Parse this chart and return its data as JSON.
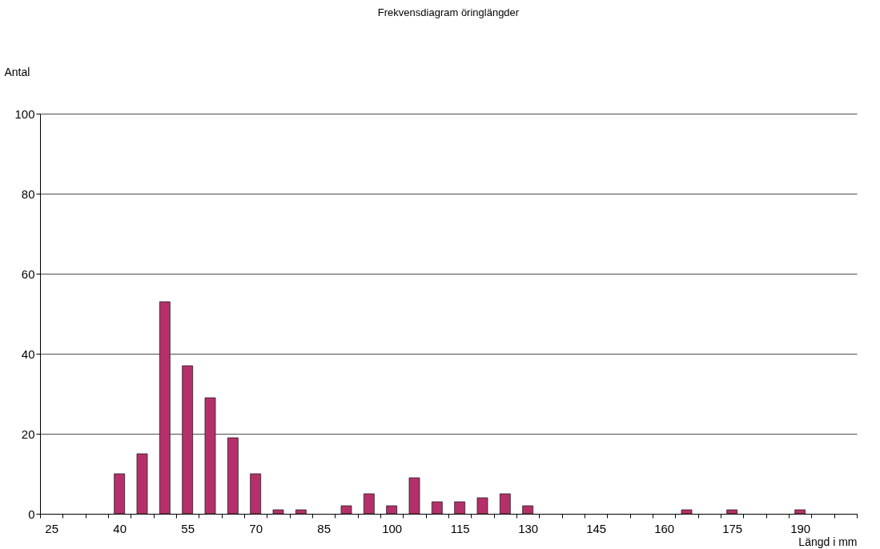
{
  "chart_data": {
    "type": "bar",
    "title": "Frekvensdiagram öringlängder",
    "xlabel": "Längd i mm",
    "ylabel": "Antal",
    "categories": [
      "25",
      null,
      null,
      "40",
      null,
      null,
      "55",
      null,
      null,
      "70",
      null,
      null,
      "85",
      null,
      null,
      "100",
      null,
      null,
      "115",
      null,
      null,
      "130",
      null,
      null,
      "145",
      null,
      null,
      "160",
      null,
      null,
      "175",
      null,
      null,
      "190",
      null,
      null
    ],
    "values": [
      0,
      0,
      0,
      10,
      15,
      53,
      37,
      29,
      19,
      10,
      1,
      1,
      0,
      2,
      5,
      2,
      9,
      3,
      3,
      4,
      5,
      2,
      0,
      0,
      0,
      0,
      0,
      0,
      1,
      0,
      1,
      0,
      0,
      1,
      0,
      0
    ],
    "color": "#b5306b",
    "ylim": [
      0,
      100
    ],
    "yticks": [
      0,
      20,
      40,
      60,
      80,
      100
    ],
    "grid": "y"
  }
}
